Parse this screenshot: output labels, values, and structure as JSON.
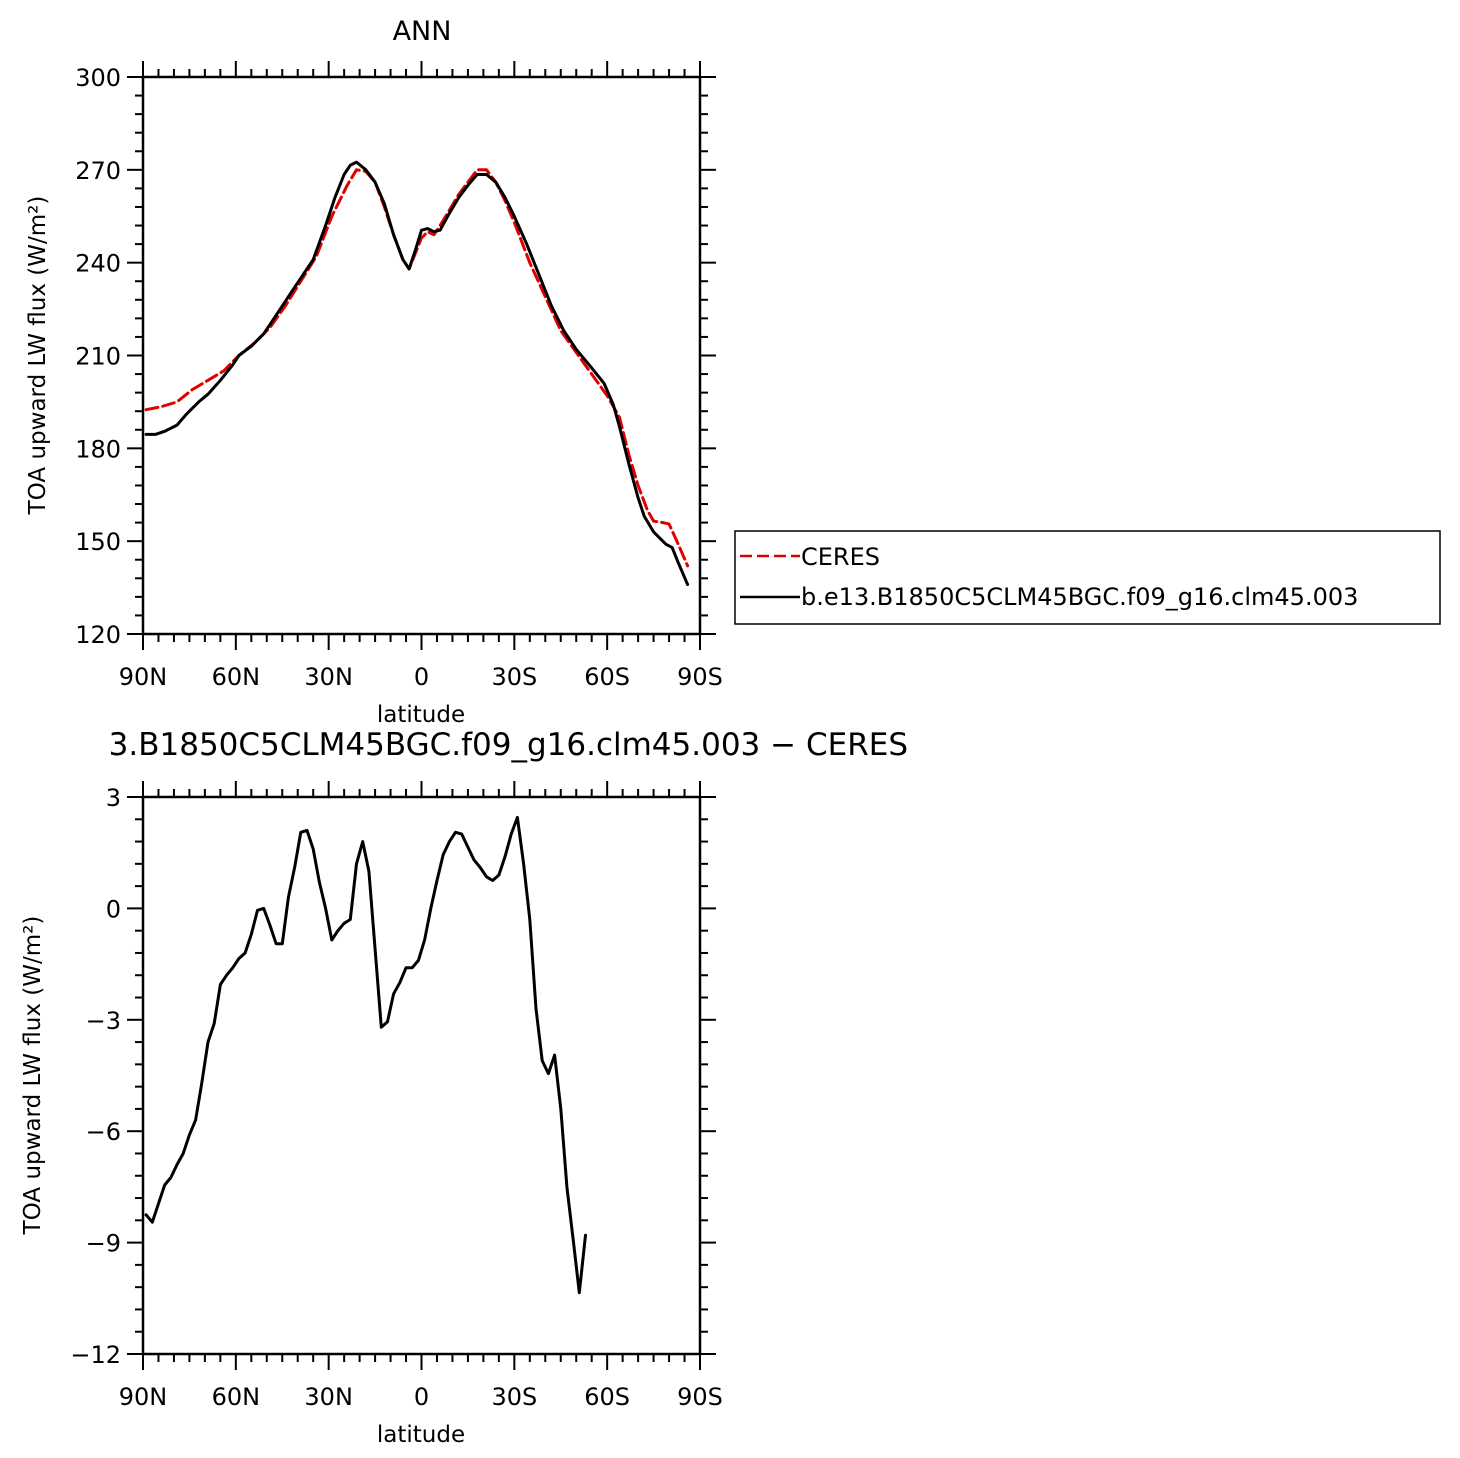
{
  "chart_data": [
    {
      "type": "line",
      "title": "ANN",
      "xlabel": "latitude",
      "ylabel": "TOA upward LW flux (W/m²)",
      "xlim": [
        90,
        -90
      ],
      "ylim": [
        120,
        300
      ],
      "yticks": [
        120,
        150,
        180,
        210,
        240,
        270,
        300
      ],
      "xticks": [
        {
          "value": 90,
          "label": "90N"
        },
        {
          "value": 60,
          "label": "60N"
        },
        {
          "value": 30,
          "label": "30N"
        },
        {
          "value": 0,
          "label": "0"
        },
        {
          "value": -30,
          "label": "30S"
        },
        {
          "value": -60,
          "label": "60S"
        },
        {
          "value": -90,
          "label": "90S"
        }
      ],
      "legend_position": "right",
      "series": [
        {
          "name": "CERES",
          "color": "#e00000",
          "dash": "dashed",
          "points": [
            [
              89,
              192.5
            ],
            [
              84,
              193.5
            ],
            [
              79,
              195
            ],
            [
              74,
              199
            ],
            [
              69,
              202
            ],
            [
              64,
              205
            ],
            [
              59,
              210
            ],
            [
              54,
              214
            ],
            [
              49,
              219
            ],
            [
              44,
              226
            ],
            [
              39,
              234
            ],
            [
              34,
              242
            ],
            [
              29,
              255
            ],
            [
              24,
              265
            ],
            [
              21,
              270
            ],
            [
              18,
              269.5
            ],
            [
              15,
              266
            ],
            [
              12,
              258
            ],
            [
              9,
              249
            ],
            [
              6,
              241
            ],
            [
              4,
              238
            ],
            [
              2,
              243
            ],
            [
              0,
              248
            ],
            [
              -2,
              250
            ],
            [
              -4,
              249
            ],
            [
              -6,
              252
            ],
            [
              -9,
              257
            ],
            [
              -12,
              262
            ],
            [
              -15,
              266
            ],
            [
              -18,
              270
            ],
            [
              -21,
              270
            ],
            [
              -24,
              266
            ],
            [
              -27,
              260
            ],
            [
              -30,
              253
            ],
            [
              -35,
              240
            ],
            [
              -40,
              229
            ],
            [
              -45,
              218
            ],
            [
              -50,
              211
            ],
            [
              -55,
              204
            ],
            [
              -60,
              197
            ],
            [
              -64,
              190
            ],
            [
              -67,
              178
            ],
            [
              -70,
              168
            ],
            [
              -73,
              160
            ],
            [
              -75,
              156.5
            ],
            [
              -78,
              156
            ],
            [
              -80,
              155.5
            ],
            [
              -83,
              149
            ],
            [
              -86,
              142
            ]
          ]
        },
        {
          "name": "b.e13.B1850C5CLM45BGC.f09_g16.clm45.003",
          "color": "#000000",
          "dash": "solid",
          "points": [
            [
              89,
              184.5
            ],
            [
              86,
              184.5
            ],
            [
              83,
              185.5
            ],
            [
              79,
              187.5
            ],
            [
              76,
              191
            ],
            [
              72,
              195
            ],
            [
              69,
              197.5
            ],
            [
              65,
              202
            ],
            [
              61,
              207
            ],
            [
              59,
              210
            ],
            [
              55,
              213
            ],
            [
              51,
              217
            ],
            [
              47,
              223
            ],
            [
              43,
              229
            ],
            [
              39,
              235
            ],
            [
              35,
              241
            ],
            [
              31,
              252
            ],
            [
              28,
              261
            ],
            [
              25,
              268.5
            ],
            [
              23,
              271.5
            ],
            [
              21,
              272.5
            ],
            [
              18,
              270
            ],
            [
              15,
              266
            ],
            [
              12,
              259
            ],
            [
              9,
              249
            ],
            [
              6,
              241
            ],
            [
              4,
              238
            ],
            [
              2,
              244
            ],
            [
              0,
              250.5
            ],
            [
              -2,
              251
            ],
            [
              -4,
              250
            ],
            [
              -6,
              250.5
            ],
            [
              -9,
              256
            ],
            [
              -12,
              261
            ],
            [
              -15,
              265
            ],
            [
              -18,
              268.5
            ],
            [
              -21,
              268.5
            ],
            [
              -24,
              266
            ],
            [
              -27,
              261
            ],
            [
              -30,
              255
            ],
            [
              -34,
              246
            ],
            [
              -38,
              236
            ],
            [
              -42,
              226
            ],
            [
              -46,
              218
            ],
            [
              -50,
              212
            ],
            [
              -55,
              206
            ],
            [
              -59,
              201
            ],
            [
              -62,
              194
            ],
            [
              -64,
              187
            ],
            [
              -67,
              175
            ],
            [
              -70,
              164
            ],
            [
              -72,
              158
            ],
            [
              -75,
              153
            ],
            [
              -79,
              149
            ],
            [
              -81,
              148
            ],
            [
              -83,
              143
            ],
            [
              -86,
              136
            ]
          ]
        }
      ]
    },
    {
      "type": "line",
      "title": "3.B1850C5CLM45BGC.f09_g16.clm45.003 − CERES",
      "xlabel": "latitude",
      "ylabel": "TOA upward LW flux (W/m²)",
      "xlim": [
        90,
        -90
      ],
      "ylim": [
        -12,
        3
      ],
      "yticks": [
        -12,
        -9,
        -6,
        -3,
        0,
        3
      ],
      "xticks": [
        {
          "value": 90,
          "label": "90N"
        },
        {
          "value": 60,
          "label": "60N"
        },
        {
          "value": 30,
          "label": "30N"
        },
        {
          "value": 0,
          "label": "0"
        },
        {
          "value": -30,
          "label": "30S"
        },
        {
          "value": -60,
          "label": "60S"
        },
        {
          "value": -90,
          "label": "90S"
        }
      ],
      "series": [
        {
          "color": "#000000",
          "dash": "solid",
          "points": [
            [
              89,
              -8.25
            ],
            [
              87,
              -8.45
            ],
            [
              83,
              -7.45
            ],
            [
              81,
              -7.25
            ],
            [
              79,
              -6.9
            ],
            [
              77,
              -6.6
            ],
            [
              75,
              -6.1
            ],
            [
              73,
              -5.7
            ],
            [
              71,
              -4.7
            ],
            [
              69,
              -3.6
            ],
            [
              67,
              -3.1
            ],
            [
              65,
              -2.05
            ],
            [
              63,
              -1.8
            ],
            [
              61,
              -1.6
            ],
            [
              59,
              -1.35
            ],
            [
              57,
              -1.2
            ],
            [
              55,
              -0.7
            ],
            [
              53,
              -0.05
            ],
            [
              51,
              0.0
            ],
            [
              49,
              -0.45
            ],
            [
              47,
              -0.95
            ],
            [
              45,
              -0.95
            ],
            [
              43,
              0.3
            ],
            [
              41,
              1.1
            ],
            [
              39,
              2.05
            ],
            [
              37,
              2.1
            ],
            [
              35,
              1.6
            ],
            [
              33,
              0.7
            ],
            [
              31,
              0.0
            ],
            [
              29,
              -0.85
            ],
            [
              27,
              -0.6
            ],
            [
              25,
              -0.4
            ],
            [
              23,
              -0.3
            ],
            [
              21,
              1.2
            ],
            [
              19,
              1.8
            ],
            [
              17,
              1.0
            ],
            [
              15,
              -1.1
            ],
            [
              13,
              -3.2
            ],
            [
              11,
              -3.05
            ],
            [
              9,
              -2.3
            ],
            [
              7,
              -2.0
            ],
            [
              5,
              -1.6
            ],
            [
              3,
              -1.6
            ],
            [
              1,
              -1.4
            ],
            [
              -1,
              -0.85
            ],
            [
              -3,
              0.0
            ],
            [
              -5,
              0.75
            ],
            [
              -7,
              1.45
            ],
            [
              -9,
              1.8
            ],
            [
              -11,
              2.05
            ],
            [
              -13,
              2.0
            ],
            [
              -15,
              1.65
            ],
            [
              -17,
              1.3
            ],
            [
              -19,
              1.1
            ],
            [
              -21,
              0.85
            ],
            [
              -23,
              0.75
            ],
            [
              -25,
              0.9
            ],
            [
              -27,
              1.4
            ],
            [
              -29,
              2.0
            ],
            [
              -31,
              2.45
            ],
            [
              -33,
              1.2
            ],
            [
              -35,
              -0.3
            ],
            [
              -37,
              -2.7
            ],
            [
              -39,
              -4.1
            ],
            [
              -41,
              -4.45
            ],
            [
              -43,
              -3.95
            ],
            [
              -45,
              -5.4
            ],
            [
              -47,
              -7.5
            ],
            [
              -49,
              -8.9
            ],
            [
              -51,
              -10.35
            ],
            [
              -53,
              -8.8
            ]
          ]
        }
      ]
    }
  ]
}
